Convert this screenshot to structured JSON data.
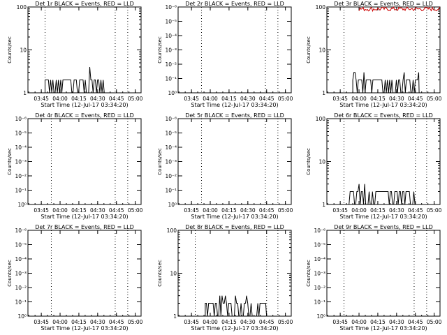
{
  "xticks": [
    "03:45",
    "04:00",
    "04:15",
    "04:30",
    "04:45",
    "05:00"
  ],
  "xlabel": "Start Time (12-Jul-17 03:34:20)",
  "ylabel": "Counts/sec",
  "colors": {
    "events": "#000000",
    "lld": "#cc0000",
    "background": "#ffffff"
  },
  "chart_data": [
    {
      "type": "line",
      "title": "Det 1r BLACK = Events, RED = LLD",
      "yscale": "log",
      "yticks": [
        "1",
        "10",
        "100"
      ],
      "ylim": [
        1,
        100
      ],
      "xticks": [
        "03:45",
        "04:00",
        "04:15",
        "04:30",
        "04:45",
        "05:00"
      ],
      "dotted_lines_at": [
        "03:48",
        "04:44",
        "04:54"
      ],
      "series": [
        {
          "name": "BLACK",
          "x_start": "03:48",
          "x_end": "04:37",
          "baseline": 1,
          "level": 2,
          "max": 4
        }
      ]
    },
    {
      "type": "line",
      "title": "Det 2r BLACK = Events, RED = LLD",
      "yscale": "log",
      "yticks": [
        "10⁰",
        "10⁻¹",
        "10⁻²",
        "10⁻³",
        "10⁻⁴",
        "10⁻⁵",
        "10⁻⁶"
      ],
      "ylim": [
        1,
        1e-06
      ],
      "xticks": [
        "03:45",
        "04:00",
        "04:15",
        "04:30",
        "04:45",
        "05:00"
      ],
      "dotted_lines_at": [
        "03:53",
        "04:44",
        "04:54"
      ],
      "series": []
    },
    {
      "type": "line",
      "title": "Det 3r BLACK = Events, RED = LLD",
      "yscale": "log",
      "yticks": [
        "1",
        "10",
        "100"
      ],
      "ylim": [
        1,
        100
      ],
      "xticks": [
        "03:45",
        "04:00",
        "04:15",
        "04:30",
        "04:45",
        "05:00"
      ],
      "dotted_lines_at": [
        "03:48",
        "04:45",
        "04:54"
      ],
      "series": [
        {
          "name": "BLACK",
          "x_start": "03:55",
          "x_end": "04:48",
          "baseline": 1,
          "level": 2,
          "max": 3
        },
        {
          "name": "RED",
          "x_start": "04:00",
          "x_end": "05:05",
          "level": 100
        }
      ]
    },
    {
      "type": "line",
      "title": "Det 4r BLACK = Events, RED = LLD",
      "yscale": "log",
      "yticks": [
        "10⁰",
        "10⁻¹",
        "10⁻²",
        "10⁻³",
        "10⁻⁴",
        "10⁻⁵",
        "10⁻⁶"
      ],
      "ylim": [
        1,
        1e-06
      ],
      "xticks": [
        "03:45",
        "04:00",
        "04:15",
        "04:30",
        "04:45",
        "05:00"
      ],
      "dotted_lines_at": [
        "03:53",
        "04:44",
        "04:54"
      ],
      "series": []
    },
    {
      "type": "line",
      "title": "Det 5r BLACK = Events, RED = LLD",
      "yscale": "log",
      "yticks": [
        "10⁰",
        "10⁻¹",
        "10⁻²",
        "10⁻³",
        "10⁻⁴",
        "10⁻⁵",
        "10⁻⁶"
      ],
      "ylim": [
        1,
        1e-06
      ],
      "xticks": [
        "03:45",
        "04:00",
        "04:15",
        "04:30",
        "04:45",
        "05:00"
      ],
      "dotted_lines_at": [
        "03:53",
        "04:44",
        "04:54"
      ],
      "series": []
    },
    {
      "type": "line",
      "title": "Det 6r BLACK = Events, RED = LLD",
      "yscale": "log",
      "yticks": [
        "1",
        "10",
        "100"
      ],
      "ylim": [
        1,
        100
      ],
      "xticks": [
        "03:45",
        "04:00",
        "04:15",
        "04:30",
        "04:45",
        "05:00"
      ],
      "dotted_lines_at": [
        "03:48",
        "04:45",
        "04:54"
      ],
      "series": [
        {
          "name": "BLACK",
          "x_start": "03:52",
          "x_end": "04:46",
          "baseline": 1,
          "level": 2,
          "max": 3
        }
      ]
    },
    {
      "type": "line",
      "title": "Det 7r BLACK = Events, RED = LLD",
      "yscale": "log",
      "yticks": [
        "10⁰",
        "10⁻¹",
        "10⁻²",
        "10⁻³",
        "10⁻⁴",
        "10⁻⁵",
        "10⁻⁶"
      ],
      "ylim": [
        1,
        1e-06
      ],
      "xticks": [
        "03:45",
        "04:00",
        "04:15",
        "04:30",
        "04:45",
        "05:00"
      ],
      "dotted_lines_at": [
        "03:53",
        "04:44",
        "04:54"
      ],
      "series": []
    },
    {
      "type": "line",
      "title": "Det 8r BLACK = Events, RED = LLD",
      "yscale": "log",
      "yticks": [
        "1",
        "10",
        "100"
      ],
      "ylim": [
        1,
        100
      ],
      "xticks": [
        "03:45",
        "04:00",
        "04:15",
        "04:30",
        "04:45",
        "05:00"
      ],
      "dotted_lines_at": [
        "03:48",
        "04:45",
        "04:54"
      ],
      "series": [
        {
          "name": "BLACK",
          "x_start": "03:56",
          "x_end": "04:45",
          "baseline": 1,
          "level": 2,
          "max": 3
        }
      ]
    },
    {
      "type": "line",
      "title": "Det 9r BLACK = Events, RED = LLD",
      "yscale": "log",
      "yticks": [
        "10⁰",
        "10⁻¹",
        "10⁻²",
        "10⁻³",
        "10⁻⁴",
        "10⁻⁵",
        "10⁻⁶"
      ],
      "ylim": [
        1,
        1e-06
      ],
      "xticks": [
        "03:45",
        "04:00",
        "04:15",
        "04:30",
        "04:45",
        "05:00"
      ],
      "dotted_lines_at": [
        "03:48",
        "04:44",
        "04:54"
      ],
      "series": []
    }
  ]
}
